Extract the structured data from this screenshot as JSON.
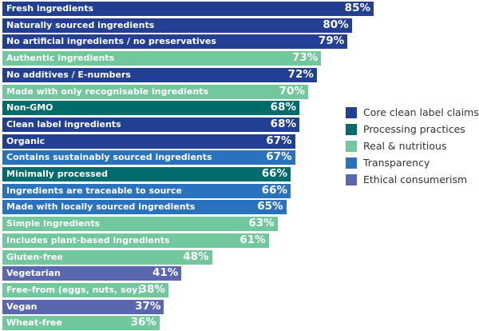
{
  "chart_data": {
    "type": "bar",
    "orientation": "horizontal",
    "title": "",
    "xlabel": "",
    "ylabel": "",
    "xlim": [
      0,
      100
    ],
    "grid": false,
    "legend_position": "right",
    "value_suffix": "%",
    "groups": [
      {
        "key": "core",
        "name": "Core clean label claims",
        "color": "#233f93"
      },
      {
        "key": "processing",
        "name": "Processing practices",
        "color": "#006b6b"
      },
      {
        "key": "real",
        "name": "Real & nutritious",
        "color": "#70c89c"
      },
      {
        "key": "transparency",
        "name": "Transparency",
        "color": "#2a72bd"
      },
      {
        "key": "ethical",
        "name": "Ethical consumerism",
        "color": "#5a66b0"
      }
    ],
    "bars": [
      {
        "label": "Fresh ingredients",
        "value": 85,
        "group": "core"
      },
      {
        "label": "Naturally sourced ingredients",
        "value": 80,
        "group": "core"
      },
      {
        "label": "No artificial ingredients / no preservatives",
        "value": 79,
        "group": "core"
      },
      {
        "label": "Authentic ingredients",
        "value": 73,
        "group": "real"
      },
      {
        "label": "No additives / E-numbers",
        "value": 72,
        "group": "core"
      },
      {
        "label": "Made with only recognisable ingredients",
        "value": 70,
        "group": "real"
      },
      {
        "label": "Non-GMO",
        "value": 68,
        "group": "processing"
      },
      {
        "label": "Clean label ingredients",
        "value": 68,
        "group": "core"
      },
      {
        "label": "Organic",
        "value": 67,
        "group": "core"
      },
      {
        "label": "Contains sustainably sourced ingredients",
        "value": 67,
        "group": "transparency"
      },
      {
        "label": "Minimally processed",
        "value": 66,
        "group": "processing"
      },
      {
        "label": "Ingredients are traceable to source",
        "value": 66,
        "group": "transparency"
      },
      {
        "label": "Made with locally sourced ingredients",
        "value": 65,
        "group": "transparency"
      },
      {
        "label": "Simple ingredients",
        "value": 63,
        "group": "real"
      },
      {
        "label": "Includes plant-based ingredients",
        "value": 61,
        "group": "real"
      },
      {
        "label": "Gluten-free",
        "value": 48,
        "group": "real"
      },
      {
        "label": "Vegetarian",
        "value": 41,
        "group": "ethical"
      },
      {
        "label": "Free-from (eggs, nuts, soy)",
        "value": 38,
        "group": "real"
      },
      {
        "label": "Vegan",
        "value": 37,
        "group": "ethical"
      },
      {
        "label": "Wheat-free",
        "value": 36,
        "group": "real"
      }
    ]
  }
}
